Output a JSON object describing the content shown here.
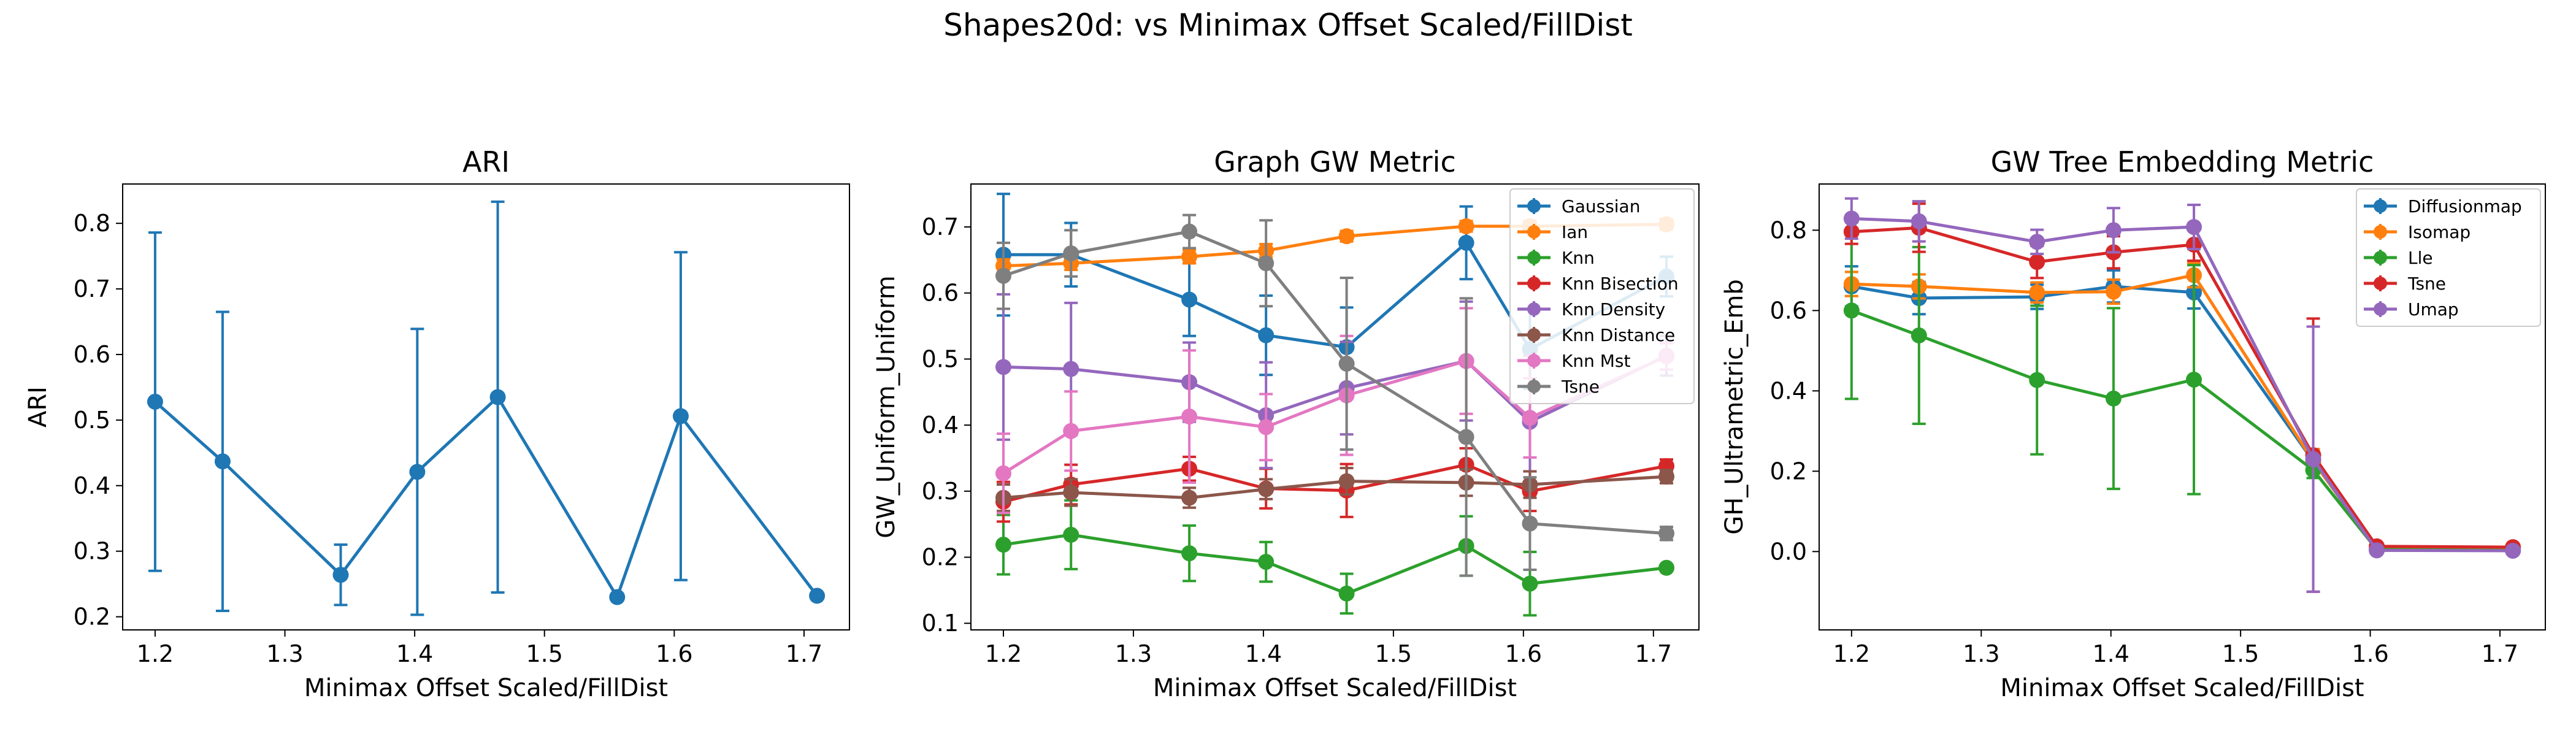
{
  "suptitle": "Shapes20d: vs Minimax Offset Scaled/FillDist",
  "chart_data": [
    {
      "type": "line",
      "title": "ARI",
      "xlabel": "Minimax Offset Scaled/FillDist",
      "ylabel": "ARI",
      "xlim": [
        1.175,
        1.735
      ],
      "ylim": [
        0.18,
        0.86
      ],
      "xticks": [
        1.2,
        1.3,
        1.4,
        1.5,
        1.6,
        1.7
      ],
      "yticks": [
        0.2,
        0.3,
        0.4,
        0.5,
        0.6,
        0.7,
        0.8
      ],
      "legend": null,
      "x": [
        1.2,
        1.252,
        1.343,
        1.402,
        1.464,
        1.556,
        1.605,
        1.71
      ],
      "series": [
        {
          "color": "#1f77b4",
          "values": [
            0.528,
            0.437,
            0.264,
            0.421,
            0.535,
            0.23,
            0.506,
            0.232
          ],
          "errors": [
            0.258,
            0.228,
            0.046,
            0.218,
            0.298,
            0.0,
            0.25,
            0.0
          ]
        }
      ]
    },
    {
      "type": "line",
      "title": "Graph GW Metric",
      "xlabel": "Minimax Offset Scaled/FillDist",
      "ylabel": "GW_Uniform_Uniform",
      "xlim": [
        1.175,
        1.735
      ],
      "ylim": [
        0.09,
        0.765
      ],
      "xticks": [
        1.2,
        1.3,
        1.4,
        1.5,
        1.6,
        1.7
      ],
      "yticks": [
        0.1,
        0.2,
        0.3,
        0.4,
        0.5,
        0.6,
        0.7
      ],
      "legend": "top-right",
      "x": [
        1.2,
        1.252,
        1.343,
        1.402,
        1.464,
        1.556,
        1.605,
        1.71
      ],
      "series": [
        {
          "name": "Gaussian",
          "color": "#1f77b4",
          "values": [
            0.658,
            0.658,
            0.59,
            0.536,
            0.518,
            0.676,
            0.515,
            0.625
          ],
          "errors": [
            0.092,
            0.048,
            0.055,
            0.06,
            0.06,
            0.055,
            0.06,
            0.03
          ]
        },
        {
          "name": "Ian",
          "color": "#ff7f0e",
          "values": [
            0.641,
            0.645,
            0.655,
            0.664,
            0.686,
            0.701,
            0.701,
            0.704
          ],
          "errors": [
            0.01,
            0.01,
            0.01,
            0.01,
            0.008,
            0.008,
            0.008,
            0.008
          ]
        },
        {
          "name": "Knn",
          "color": "#2ca02c",
          "values": [
            0.219,
            0.234,
            0.206,
            0.193,
            0.145,
            0.217,
            0.16,
            0.184
          ],
          "errors": [
            0.045,
            0.052,
            0.042,
            0.03,
            0.03,
            0.045,
            0.048,
            0.0
          ]
        },
        {
          "name": "Knn Bisection",
          "color": "#d62728",
          "values": [
            0.284,
            0.31,
            0.334,
            0.304,
            0.301,
            0.34,
            0.3,
            0.338
          ],
          "errors": [
            0.03,
            0.03,
            0.018,
            0.03,
            0.04,
            0.025,
            0.03,
            0.01
          ]
        },
        {
          "name": "Knn Density",
          "color": "#9467bd",
          "values": [
            0.488,
            0.485,
            0.465,
            0.415,
            0.456,
            0.497,
            0.405,
            0.505
          ],
          "errors": [
            0.11,
            0.1,
            0.06,
            0.08,
            0.07,
            0.09,
            0.1,
            0.03
          ]
        },
        {
          "name": "Knn Distance",
          "color": "#8c564b",
          "values": [
            0.29,
            0.298,
            0.29,
            0.303,
            0.315,
            0.313,
            0.31,
            0.322
          ],
          "errors": [
            0.02,
            0.02,
            0.015,
            0.015,
            0.02,
            0.02,
            0.02,
            0.01
          ]
        },
        {
          "name": "Knn Mst",
          "color": "#e377c2",
          "values": [
            0.327,
            0.391,
            0.413,
            0.397,
            0.445,
            0.497,
            0.411,
            0.504
          ],
          "errors": [
            0.06,
            0.06,
            0.1,
            0.05,
            0.09,
            0.08,
            0.06,
            0.02
          ]
        },
        {
          "name": "Tsne",
          "color": "#7f7f7f",
          "values": [
            0.626,
            0.66,
            0.693,
            0.645,
            0.493,
            0.382,
            0.251,
            0.236
          ],
          "errors": [
            0.05,
            0.035,
            0.025,
            0.065,
            0.13,
            0.21,
            0.07,
            0.01
          ]
        }
      ]
    },
    {
      "type": "line",
      "title": "GW Tree Embedding Metric",
      "xlabel": "Minimax Offset Scaled/FillDist",
      "ylabel": "GH_Ultrametric_Emb",
      "xlim": [
        1.175,
        1.735
      ],
      "ylim": [
        -0.195,
        0.915
      ],
      "xticks": [
        1.2,
        1.3,
        1.4,
        1.5,
        1.6,
        1.7
      ],
      "yticks": [
        0.0,
        0.2,
        0.4,
        0.6,
        0.8
      ],
      "legend": "top-right",
      "x": [
        1.2,
        1.252,
        1.343,
        1.402,
        1.464,
        1.556,
        1.605,
        1.71
      ],
      "series": [
        {
          "name": "Diffusionmap",
          "color": "#1f77b4",
          "values": [
            0.66,
            0.631,
            0.634,
            0.66,
            0.645,
            0.225,
            0.005,
            0.003
          ],
          "errors": [
            0.05,
            0.04,
            0.03,
            0.04,
            0.04,
            0.03,
            0.004,
            0.003
          ]
        },
        {
          "name": "Isomap",
          "color": "#ff7f0e",
          "values": [
            0.666,
            0.66,
            0.645,
            0.647,
            0.688,
            0.225,
            0.007,
            0.004
          ],
          "errors": [
            0.03,
            0.03,
            0.025,
            0.03,
            0.03,
            0.03,
            0.004,
            0.003
          ]
        },
        {
          "name": "Lle",
          "color": "#2ca02c",
          "values": [
            0.6,
            0.538,
            0.427,
            0.381,
            0.428,
            0.203,
            0.005,
            0.003
          ],
          "errors": [
            0.22,
            0.22,
            0.185,
            0.225,
            0.285,
            0.02,
            0.004,
            0.003
          ]
        },
        {
          "name": "Tsne",
          "color": "#d62728",
          "values": [
            0.796,
            0.806,
            0.721,
            0.745,
            0.764,
            0.24,
            0.013,
            0.011
          ],
          "errors": [
            0.03,
            0.06,
            0.04,
            0.04,
            0.04,
            0.34,
            0.005,
            0.003
          ]
        },
        {
          "name": "Umap",
          "color": "#9467bd",
          "values": [
            0.829,
            0.822,
            0.771,
            0.8,
            0.808,
            0.23,
            0.003,
            0.002
          ],
          "errors": [
            0.05,
            0.05,
            0.03,
            0.055,
            0.055,
            0.33,
            0.004,
            0.003
          ]
        }
      ]
    }
  ]
}
